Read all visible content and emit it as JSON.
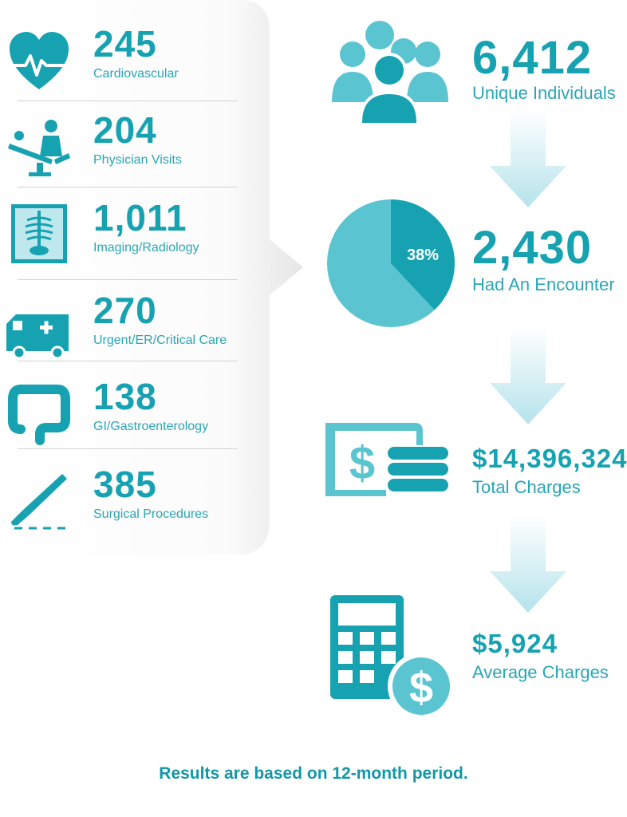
{
  "categories": [
    {
      "value": "245",
      "label": "Cardiovascular",
      "icon": "heart-pulse-icon"
    },
    {
      "value": "204",
      "label": "Physician Visits",
      "icon": "physician-exam-icon"
    },
    {
      "value": "1,011",
      "label": "Imaging/Radiology",
      "icon": "xray-icon"
    },
    {
      "value": "270",
      "label": "Urgent/ER/Critical Care",
      "icon": "ambulance-icon"
    },
    {
      "value": "138",
      "label": "GI/Gastroenterology",
      "icon": "intestine-icon"
    },
    {
      "value": "385",
      "label": "Surgical Procedures",
      "icon": "scalpel-icon"
    }
  ],
  "stats": {
    "individuals": {
      "value": "6,412",
      "label": "Unique Individuals",
      "icon": "people-group-icon"
    },
    "encounter": {
      "value": "2,430",
      "label": "Had An Encounter",
      "pie_percent_label": "38%",
      "pie_fraction": 0.38,
      "icon": "pie-chart-icon"
    },
    "charges": {
      "value": "$14,396,324",
      "label": "Total Charges",
      "icon": "money-stack-icon"
    },
    "average": {
      "value": "$5,924",
      "label": "Average Charges",
      "icon": "calculator-dollar-icon"
    }
  },
  "footer": "Results are based on 12-month period.",
  "colors": {
    "accent": "#16a2b0",
    "light_accent": "#5bc4d1",
    "arrow": "#bde6ed"
  }
}
